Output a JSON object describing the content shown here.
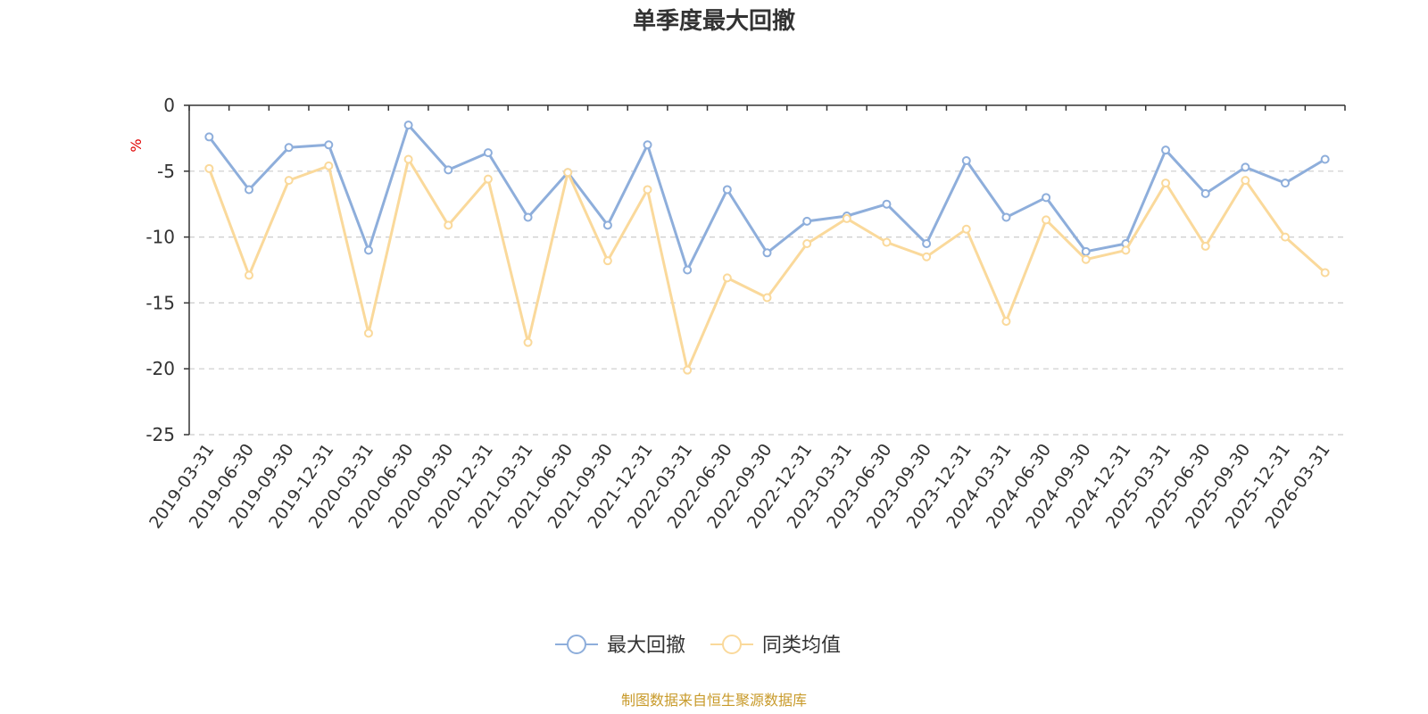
{
  "chart_data": {
    "type": "line",
    "title": "单季度最大回撤",
    "ylabel": "%",
    "ylim": [
      -25,
      0
    ],
    "yticks": [
      0,
      -5,
      -10,
      -15,
      -20,
      -25
    ],
    "grid": true,
    "legend_position": "bottom-center",
    "categories": [
      "2019-03-31",
      "2019-06-30",
      "2019-09-30",
      "2019-12-31",
      "2020-03-31",
      "2020-06-30",
      "2020-09-30",
      "2020-12-31",
      "2021-03-31",
      "2021-06-30",
      "2021-09-30",
      "2021-12-31",
      "2022-03-31",
      "2022-06-30",
      "2022-09-30",
      "2022-12-31",
      "2023-03-31",
      "2023-06-30",
      "2023-09-30",
      "2023-12-31",
      "2024-03-31",
      "2024-06-30",
      "2024-09-30",
      "2024-12-31",
      "2025-03-31",
      "2025-06-30",
      "2025-09-30",
      "2025-12-31",
      "2026-03-31"
    ],
    "series": [
      {
        "name": "最大回撤",
        "color": "#8eaedb",
        "values": [
          -2.4,
          -6.4,
          -3.2,
          -3.0,
          -11.0,
          -1.5,
          -4.9,
          -3.6,
          -8.5,
          -5.1,
          -9.1,
          -3.0,
          -12.5,
          -6.4,
          -11.2,
          -8.8,
          -8.4,
          -7.5,
          -10.5,
          -4.2,
          -8.5,
          -7.0,
          -11.1,
          -10.5,
          -3.4,
          -6.7,
          -4.7,
          -5.9,
          -4.1
        ]
      },
      {
        "name": "同类均值",
        "color": "#fad99b",
        "values": [
          -4.8,
          -12.9,
          -5.7,
          -4.6,
          -17.3,
          -4.1,
          -9.1,
          -5.6,
          -18.0,
          -5.1,
          -11.8,
          -6.4,
          -20.1,
          -13.1,
          -14.6,
          -10.5,
          -8.6,
          -10.4,
          -11.5,
          -9.4,
          -16.4,
          -8.7,
          -11.7,
          -11.0,
          -5.9,
          -10.7,
          -5.7,
          -10.0,
          -12.7
        ]
      }
    ]
  },
  "footer": {
    "source": "制图数据来自恒生聚源数据库"
  }
}
